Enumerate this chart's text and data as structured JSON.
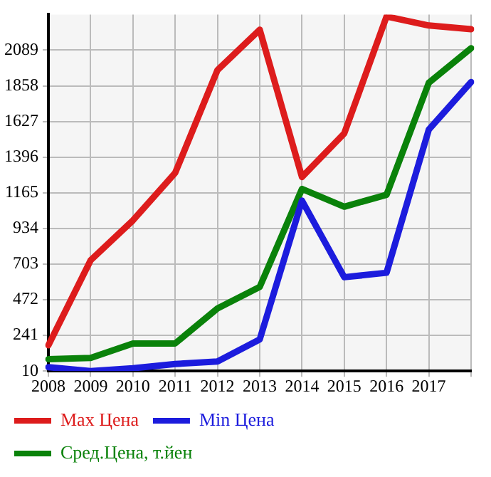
{
  "chart_data": {
    "type": "line",
    "categories": [
      "2008",
      "2009",
      "2010",
      "2011",
      "2012",
      "2013",
      "2014",
      "2015",
      "2016",
      "2017",
      null
    ],
    "series": [
      {
        "name": "Max Цена",
        "color": "#dd1c1c",
        "values": [
          177,
          728,
          986,
          1294,
          1960,
          2222,
          1267,
          1550,
          2307,
          2249,
          2225
        ]
      },
      {
        "name": "Min Цена",
        "color": "#1c1cdd",
        "values": [
          35,
          10,
          28,
          56,
          72,
          215,
          1114,
          618,
          647,
          1575,
          1883
        ]
      },
      {
        "name": "Сред.Цена, т.йен",
        "color": "#0a820a",
        "values": [
          87,
          95,
          189,
          189,
          416,
          555,
          1190,
          1075,
          1152,
          1878,
          2102
        ]
      }
    ],
    "ylim": [
      10,
      2320
    ],
    "yticks": [
      10,
      241,
      472,
      703,
      934,
      1165,
      1396,
      1627,
      1858,
      2089
    ],
    "grid": true,
    "legend": "bottom",
    "marker": "none",
    "line_style": "solid"
  }
}
